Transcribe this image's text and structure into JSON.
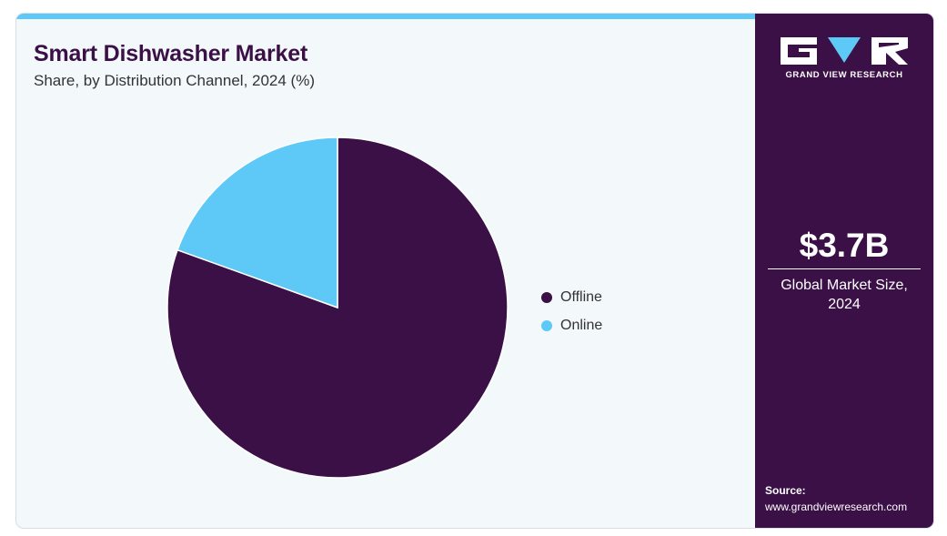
{
  "header": {
    "title": "Smart Dishwasher Market",
    "subtitle": "Share, by Distribution Channel, 2024 (%)"
  },
  "chart_data": {
    "type": "pie",
    "title": "Smart Dishwasher Market",
    "subtitle": "Share, by Distribution Channel, 2024 (%)",
    "categories": [
      "Offline",
      "Online"
    ],
    "values": [
      80.5,
      19.5
    ],
    "colors": [
      "#3a1046",
      "#5ec8f7"
    ],
    "legend": "right",
    "start_angle": "12 o'clock, clockwise"
  },
  "sidebar": {
    "logo_text": "GRAND VIEW RESEARCH",
    "market_value": "$3.7B",
    "market_label": "Global Market Size, 2024",
    "source_label": "Source:",
    "source_url": "www.grandviewresearch.com"
  },
  "colors": {
    "brand_dark": "#3a1046",
    "accent": "#5ec8f7",
    "background": "#f3f8fb"
  }
}
